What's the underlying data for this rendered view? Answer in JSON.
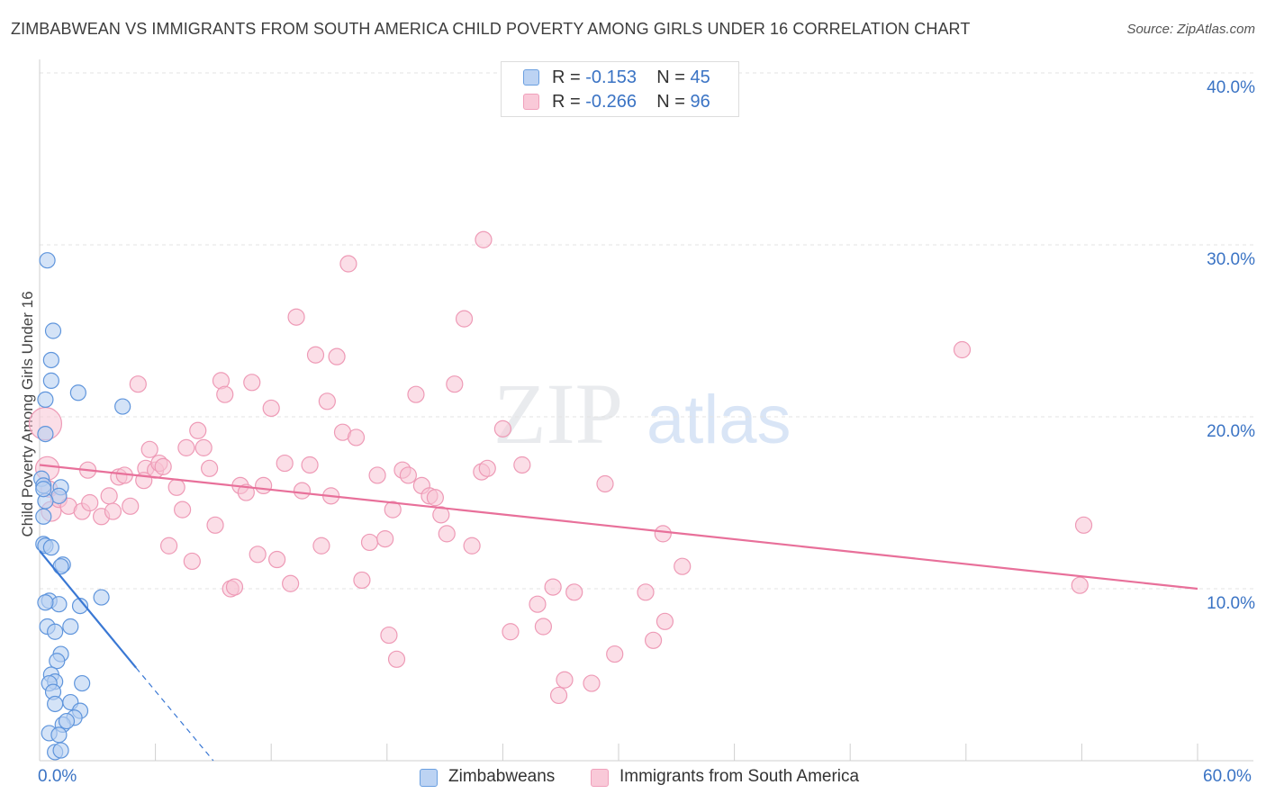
{
  "header": {
    "title": "ZIMBABWEAN VS IMMIGRANTS FROM SOUTH AMERICA CHILD POVERTY AMONG GIRLS UNDER 16 CORRELATION CHART",
    "source": "Source: ZipAtlas.com"
  },
  "watermark": "ZIPatlas",
  "legend": {
    "rows": [
      {
        "r_label": "R =",
        "r_value": "-0.153",
        "n_label": "N =",
        "n_value": "45"
      },
      {
        "r_label": "R =",
        "r_value": "-0.266",
        "n_label": "N =",
        "n_value": "96"
      }
    ]
  },
  "chart_data": {
    "type": "scatter",
    "title": "ZIMBABWEAN VS IMMIGRANTS FROM SOUTH AMERICA CHILD POVERTY AMONG GIRLS UNDER 16 CORRELATION CHART",
    "xlabel": "",
    "ylabel": "Child Poverty Among Girls Under 16",
    "xlim": [
      0,
      60
    ],
    "ylim": [
      0,
      40
    ],
    "x_tick_labels": [
      "0.0%",
      "60.0%"
    ],
    "y_ticks": [
      10,
      20,
      30,
      40
    ],
    "y_tick_labels": [
      "10.0%",
      "20.0%",
      "30.0%",
      "40.0%"
    ],
    "grid": true,
    "legend_position": "top-center",
    "colors": {
      "zimbabweans": "#6a9fe0",
      "south_america": "#f0a0bb",
      "blue_line": "#3a78d4",
      "pink_line": "#e8709a"
    },
    "series": [
      {
        "name": "Zimbabweans",
        "r": -0.153,
        "n": 45,
        "trend": {
          "x0": 0.0,
          "y0": 12.2,
          "x1": 5.0,
          "y1": 5.4,
          "dash_to_x": 9.0,
          "dash_to_y": 0.0
        },
        "points": [
          [
            0.4,
            29.1
          ],
          [
            0.7,
            25.0
          ],
          [
            0.6,
            23.3
          ],
          [
            0.6,
            22.1
          ],
          [
            2.0,
            21.4
          ],
          [
            0.3,
            21.0
          ],
          [
            4.3,
            20.6
          ],
          [
            0.3,
            19.0
          ],
          [
            0.1,
            16.4
          ],
          [
            0.2,
            16.0
          ],
          [
            1.1,
            15.9
          ],
          [
            1.0,
            15.4
          ],
          [
            0.3,
            15.1
          ],
          [
            0.2,
            14.2
          ],
          [
            0.2,
            12.6
          ],
          [
            0.3,
            12.5
          ],
          [
            1.2,
            11.4
          ],
          [
            1.1,
            11.3
          ],
          [
            0.5,
            9.3
          ],
          [
            1.0,
            9.1
          ],
          [
            2.1,
            9.0
          ],
          [
            3.2,
            9.5
          ],
          [
            0.4,
            7.8
          ],
          [
            0.8,
            7.5
          ],
          [
            1.6,
            7.8
          ],
          [
            1.1,
            6.2
          ],
          [
            0.9,
            5.8
          ],
          [
            0.6,
            5.0
          ],
          [
            0.8,
            4.6
          ],
          [
            0.5,
            4.5
          ],
          [
            2.2,
            4.5
          ],
          [
            0.7,
            4.0
          ],
          [
            1.6,
            3.4
          ],
          [
            0.8,
            3.3
          ],
          [
            2.1,
            2.9
          ],
          [
            1.8,
            2.5
          ],
          [
            1.2,
            2.1
          ],
          [
            0.5,
            1.6
          ],
          [
            1.0,
            1.5
          ],
          [
            0.8,
            0.5
          ],
          [
            1.1,
            0.6
          ],
          [
            0.3,
            9.2
          ],
          [
            0.6,
            12.4
          ],
          [
            1.4,
            2.3
          ],
          [
            0.2,
            15.8
          ]
        ]
      },
      {
        "name": "Immigrants from South America",
        "r": -0.266,
        "n": 96,
        "trend": {
          "x0": 0.0,
          "y0": 17.2,
          "x1": 60.0,
          "y1": 10.0
        },
        "points": [
          [
            0.3,
            19.6
          ],
          [
            0.4,
            17.0
          ],
          [
            0.5,
            15.8
          ],
          [
            0.6,
            14.5
          ],
          [
            1.0,
            15.2
          ],
          [
            1.5,
            14.8
          ],
          [
            2.2,
            14.5
          ],
          [
            2.5,
            16.9
          ],
          [
            2.6,
            15.0
          ],
          [
            3.2,
            14.2
          ],
          [
            3.6,
            15.4
          ],
          [
            3.8,
            14.5
          ],
          [
            4.1,
            16.5
          ],
          [
            4.4,
            16.6
          ],
          [
            4.7,
            14.8
          ],
          [
            5.1,
            21.9
          ],
          [
            5.5,
            17.0
          ],
          [
            5.7,
            18.1
          ],
          [
            6.0,
            16.9
          ],
          [
            6.2,
            17.3
          ],
          [
            6.4,
            17.1
          ],
          [
            6.7,
            12.5
          ],
          [
            7.1,
            15.9
          ],
          [
            7.4,
            14.6
          ],
          [
            7.6,
            18.2
          ],
          [
            7.9,
            11.6
          ],
          [
            8.2,
            19.2
          ],
          [
            8.5,
            18.2
          ],
          [
            8.8,
            17.0
          ],
          [
            9.1,
            13.7
          ],
          [
            9.4,
            22.1
          ],
          [
            9.6,
            21.3
          ],
          [
            9.9,
            10.0
          ],
          [
            10.1,
            10.1
          ],
          [
            10.4,
            16.0
          ],
          [
            10.7,
            15.6
          ],
          [
            11.0,
            22.0
          ],
          [
            11.3,
            12.0
          ],
          [
            11.6,
            16.0
          ],
          [
            12.0,
            20.5
          ],
          [
            12.3,
            11.7
          ],
          [
            12.7,
            17.3
          ],
          [
            13.0,
            10.3
          ],
          [
            13.3,
            25.8
          ],
          [
            13.6,
            15.7
          ],
          [
            14.0,
            17.2
          ],
          [
            14.3,
            23.6
          ],
          [
            14.6,
            12.5
          ],
          [
            14.9,
            20.9
          ],
          [
            15.1,
            15.4
          ],
          [
            15.4,
            23.5
          ],
          [
            15.7,
            19.1
          ],
          [
            16.0,
            28.9
          ],
          [
            16.4,
            18.8
          ],
          [
            16.7,
            10.5
          ],
          [
            17.1,
            12.7
          ],
          [
            17.5,
            16.6
          ],
          [
            17.9,
            12.9
          ],
          [
            18.1,
            7.3
          ],
          [
            18.3,
            14.6
          ],
          [
            18.5,
            5.9
          ],
          [
            18.8,
            16.9
          ],
          [
            19.1,
            16.6
          ],
          [
            19.5,
            21.3
          ],
          [
            19.8,
            16.0
          ],
          [
            20.2,
            15.4
          ],
          [
            20.5,
            15.3
          ],
          [
            20.8,
            14.3
          ],
          [
            21.1,
            13.2
          ],
          [
            21.5,
            21.9
          ],
          [
            22.0,
            25.7
          ],
          [
            22.4,
            12.5
          ],
          [
            22.9,
            16.8
          ],
          [
            23.2,
            17.0
          ],
          [
            23.0,
            30.3
          ],
          [
            24.0,
            19.3
          ],
          [
            24.4,
            7.5
          ],
          [
            25.0,
            17.2
          ],
          [
            25.8,
            9.1
          ],
          [
            26.1,
            7.8
          ],
          [
            26.6,
            10.1
          ],
          [
            26.9,
            3.8
          ],
          [
            27.2,
            4.7
          ],
          [
            27.7,
            9.8
          ],
          [
            28.6,
            4.5
          ],
          [
            29.3,
            16.1
          ],
          [
            29.8,
            6.2
          ],
          [
            31.4,
            9.8
          ],
          [
            31.8,
            7.0
          ],
          [
            32.3,
            13.2
          ],
          [
            32.4,
            8.1
          ],
          [
            33.3,
            11.3
          ],
          [
            47.8,
            23.9
          ],
          [
            54.1,
            13.7
          ],
          [
            53.9,
            10.2
          ],
          [
            5.4,
            16.3
          ]
        ]
      }
    ]
  },
  "bottom_legend": [
    {
      "label": "Zimbabweans"
    },
    {
      "label": "Immigrants from South America"
    }
  ]
}
